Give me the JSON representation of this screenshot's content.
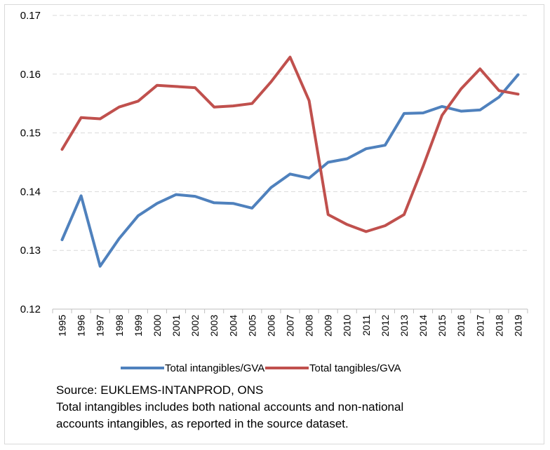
{
  "chart_data": {
    "type": "line",
    "title": "",
    "xlabel": "",
    "ylabel": "",
    "ylim": [
      0.12,
      0.17
    ],
    "y_ticks": [
      "0.12",
      "0.13",
      "0.14",
      "0.15",
      "0.16",
      "0.17"
    ],
    "y_tick_values": [
      0.12,
      0.13,
      0.14,
      0.15,
      0.16,
      0.17
    ],
    "grid": "horizontal dashed",
    "legend_position": "bottom",
    "x": [
      "1995",
      "1996",
      "1997",
      "1998",
      "1999",
      "2000",
      "2001",
      "2002",
      "2003",
      "2004",
      "2005",
      "2006",
      "2007",
      "2008",
      "2009",
      "2010",
      "2011",
      "2012",
      "2013",
      "2014",
      "2015",
      "2016",
      "2017",
      "2018",
      "2019"
    ],
    "series": [
      {
        "name": "Total intangibles/GVA",
        "color": "#4f81bd",
        "values": [
          0.1318,
          0.1393,
          0.1273,
          0.132,
          0.1359,
          0.138,
          0.1395,
          0.1392,
          0.1381,
          0.138,
          0.1372,
          0.1407,
          0.143,
          0.1423,
          0.145,
          0.1456,
          0.1473,
          0.1479,
          0.1533,
          0.1534,
          0.1545,
          0.1537,
          0.1539,
          0.1561,
          0.1599
        ]
      },
      {
        "name": "Total tangibles/GVA",
        "color": "#c0504d",
        "values": [
          0.1472,
          0.1526,
          0.1524,
          0.1544,
          0.1554,
          0.1581,
          0.1579,
          0.1577,
          0.1544,
          0.1546,
          0.155,
          0.1587,
          0.1629,
          0.1555,
          0.1361,
          0.1344,
          0.1332,
          0.1342,
          0.1361,
          0.1443,
          0.153,
          0.1575,
          0.1609,
          0.1572,
          0.1566
        ]
      }
    ]
  },
  "notes": {
    "line1": "Source: EUKLEMS-INTANPROD, ONS",
    "line2": "Total intangibles includes both national accounts and non-national",
    "line3": "accounts intangibles, as reported in the source dataset."
  }
}
